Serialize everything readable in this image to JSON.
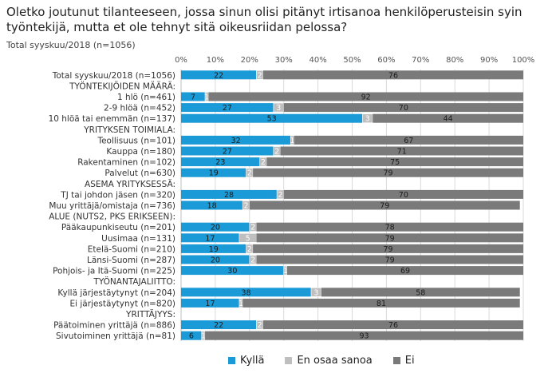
{
  "header": {
    "title": "Oletko joutunut tilanteeseen, jossa sinun olisi pitänyt irtisanoa henkilöperusteisin syin työntekijä, mutta et ole tehnyt sitä oikeusriidan pelossa?",
    "subtitle": "Total syyskuu/2018 (n=1056)"
  },
  "colors": {
    "kylla": "#1a9ad6",
    "eos": "#bfbfbf",
    "ei": "#7a7a7a"
  },
  "legend": [
    {
      "label": "Kyllä",
      "color": "#1a9ad6"
    },
    {
      "label": "En osaa sanoa",
      "color": "#bfbfbf"
    },
    {
      "label": "Ei",
      "color": "#7a7a7a"
    }
  ],
  "chart_data": {
    "type": "bar",
    "orientation": "horizontal",
    "stacked": true,
    "xlim": [
      0,
      100
    ],
    "x_ticks": [
      "0%",
      "10%",
      "20%",
      "30%",
      "40%",
      "50%",
      "60%",
      "70%",
      "80%",
      "90%",
      "100%"
    ],
    "legend_position": "bottom",
    "grid": true,
    "series_names": [
      "Kyllä",
      "En osaa sanoa",
      "Ei"
    ],
    "rows": [
      {
        "label": "Total syyskuu/2018 (n=1056)",
        "values": [
          22,
          2,
          76
        ]
      },
      {
        "label": "TYÖNTEKIJÖIDEN MÄÄRÄ:",
        "header": true
      },
      {
        "label": "1 hlö (n=461)",
        "values": [
          7,
          1,
          92
        ]
      },
      {
        "label": "2-9 hlöä (n=452)",
        "values": [
          27,
          3,
          70
        ]
      },
      {
        "label": "10 hlöä tai enemmän (n=137)",
        "values": [
          53,
          3,
          44
        ]
      },
      {
        "label": "YRITYKSEN TOIMIALA:",
        "header": true
      },
      {
        "label": "Teollisuus (n=101)",
        "values": [
          32,
          1,
          67
        ]
      },
      {
        "label": "Kauppa (n=180)",
        "values": [
          27,
          2,
          71
        ]
      },
      {
        "label": "Rakentaminen (n=102)",
        "values": [
          23,
          2,
          75
        ]
      },
      {
        "label": "Palvelut (n=630)",
        "values": [
          19,
          2,
          79
        ]
      },
      {
        "label": "ASEMA YRITYKSESSÄ:",
        "header": true
      },
      {
        "label": "TJ tai johdon jäsen (n=320)",
        "values": [
          28,
          2,
          70
        ]
      },
      {
        "label": "Muu yrittäjä/omistaja (n=736)",
        "values": [
          18,
          2,
          79
        ]
      },
      {
        "label": "ALUE (NUTS2, PKS ERIKSEEN):",
        "header": true
      },
      {
        "label": "Pääkaupunkiseutu (n=201)",
        "values": [
          20,
          2,
          78
        ]
      },
      {
        "label": "Uusimaa (n=131)",
        "values": [
          17,
          5,
          79
        ]
      },
      {
        "label": "Etelä-Suomi (n=210)",
        "values": [
          19,
          2,
          79
        ]
      },
      {
        "label": "Länsi-Suomi (n=287)",
        "values": [
          20,
          2,
          79
        ]
      },
      {
        "label": "Pohjois- ja Itä-Suomi (n=225)",
        "values": [
          30,
          1,
          69
        ]
      },
      {
        "label": "TYÖNANTAJALIITTO:",
        "header": true
      },
      {
        "label": "Kyllä järjestäytynyt (n=204)",
        "values": [
          38,
          3,
          58
        ]
      },
      {
        "label": "Ei järjestäytynyt (n=820)",
        "values": [
          17,
          1,
          81
        ]
      },
      {
        "label": "YRITTÄJYYS:",
        "header": true
      },
      {
        "label": "Päätoiminen yrittäjä (n=886)",
        "values": [
          22,
          2,
          76
        ]
      },
      {
        "label": "Sivutoiminen yrittäjä (n=81)",
        "values": [
          6,
          1,
          93
        ]
      }
    ]
  }
}
